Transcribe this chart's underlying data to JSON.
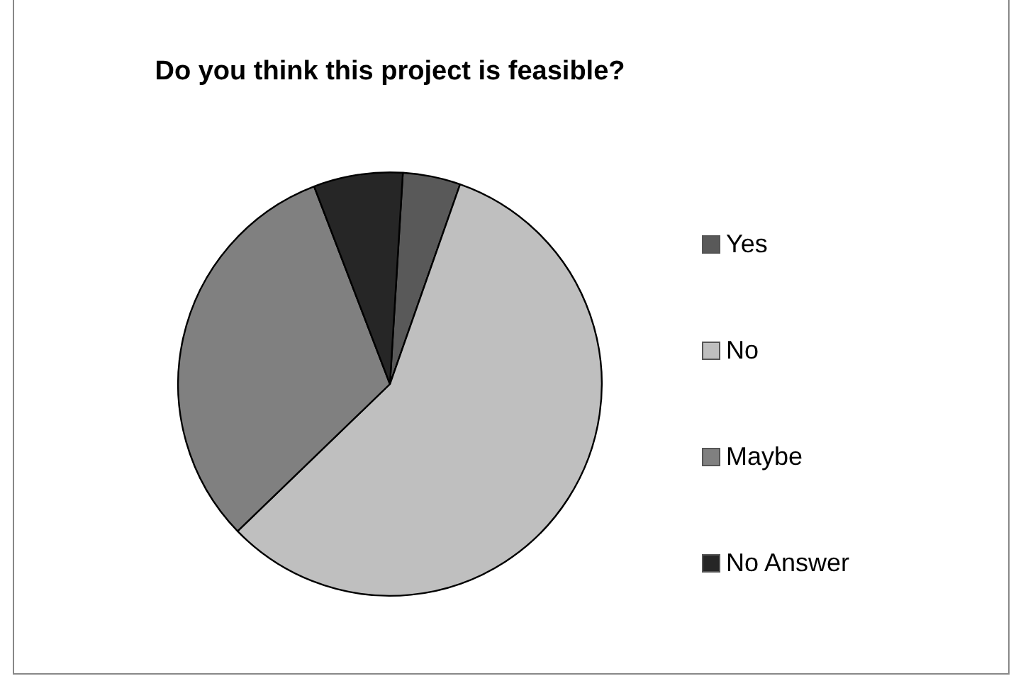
{
  "chart_data": {
    "type": "pie",
    "title": "Do you think this project is feasible?",
    "categories": [
      "Yes",
      "No",
      "Maybe",
      "No Answer"
    ],
    "values": [
      4.4,
      57.4,
      31.4,
      6.8
    ],
    "colors": [
      "#595959",
      "#bfbfbf",
      "#808080",
      "#262626"
    ],
    "legend": "right"
  }
}
